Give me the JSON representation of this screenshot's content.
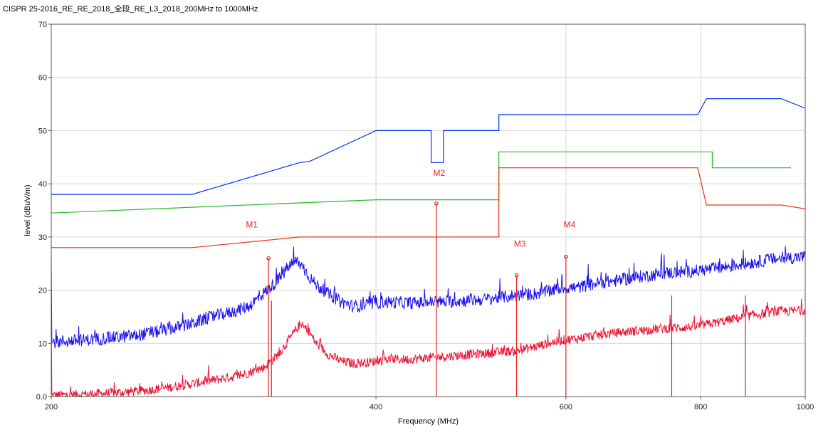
{
  "chart_data": {
    "type": "line",
    "title": "CISPR 25-2016_RE_RE_2018_全段_RE_L3_2018_200MHz to 1000MHz",
    "xlabel": "Frequency (MHz)",
    "ylabel": "level (dBuV/m)",
    "x_scale": "log",
    "xlim": [
      200,
      1000
    ],
    "ylim": [
      0,
      70
    ],
    "x_ticks": [
      200,
      400,
      600,
      800,
      1000
    ],
    "x_tick_labels": [
      "200",
      "400",
      "600",
      "800",
      "1000"
    ],
    "y_ticks": [
      0,
      10,
      20,
      30,
      40,
      50,
      60,
      70
    ],
    "y_tick_labels": [
      "0.0",
      "10",
      "20",
      "30",
      "40",
      "50",
      "60",
      "70"
    ],
    "grid": true,
    "colors": {
      "peak_limit": "#0033ff",
      "qp_limit": "#22bb22",
      "avg_limit": "#ee3311",
      "peak_trace": "#1a10ee",
      "avg_trace": "#ee1133",
      "marker": "#ee2222",
      "grid": "#d4d4d4"
    },
    "limit_lines": [
      {
        "key": "peak_limit",
        "points": [
          [
            200,
            38
          ],
          [
            270,
            38
          ],
          [
            340,
            44
          ],
          [
            347,
            44.2
          ],
          [
            400,
            50
          ],
          [
            450,
            50
          ],
          [
            450,
            44
          ],
          [
            462,
            44
          ],
          [
            462,
            50
          ],
          [
            520,
            50
          ],
          [
            520,
            53
          ],
          [
            795,
            53
          ],
          [
            810,
            56
          ],
          [
            950,
            56
          ],
          [
            1000,
            54.2
          ]
        ]
      },
      {
        "key": "qp_limit",
        "points": [
          [
            200,
            34.5
          ],
          [
            400,
            37
          ],
          [
            520,
            37
          ],
          [
            520,
            46
          ],
          [
            820,
            46
          ],
          [
            820,
            43
          ],
          [
            970,
            43
          ]
        ]
      },
      {
        "key": "avg_limit",
        "points": [
          [
            200,
            28
          ],
          [
            270,
            28
          ],
          [
            340,
            30
          ],
          [
            520,
            30
          ],
          [
            520,
            43
          ],
          [
            795,
            43
          ],
          [
            810,
            36
          ],
          [
            950,
            36
          ],
          [
            1000,
            35.3
          ]
        ]
      }
    ],
    "peak_trace": {
      "key": "peak_trace",
      "points": [
        [
          200,
          10.2
        ],
        [
          220,
          10.8
        ],
        [
          240,
          11.5
        ],
        [
          255,
          12.5
        ],
        [
          268,
          13.5
        ],
        [
          280,
          14.8
        ],
        [
          295,
          16
        ],
        [
          305,
          17
        ],
        [
          315,
          19.5
        ],
        [
          325,
          22
        ],
        [
          332,
          24.5
        ],
        [
          338,
          25.5
        ],
        [
          343,
          24
        ],
        [
          350,
          21.5
        ],
        [
          360,
          19.5
        ],
        [
          370,
          18
        ],
        [
          380,
          17
        ],
        [
          392,
          17.2
        ],
        [
          405,
          17.8
        ],
        [
          430,
          17.6
        ],
        [
          460,
          17.8
        ],
        [
          500,
          18.2
        ],
        [
          540,
          19
        ],
        [
          570,
          19.5
        ],
        [
          590,
          20.3
        ],
        [
          615,
          20.5
        ],
        [
          640,
          21.3
        ],
        [
          670,
          21.8
        ],
        [
          700,
          22.5
        ],
        [
          740,
          23.2
        ],
        [
          780,
          23.5
        ],
        [
          820,
          24
        ],
        [
          870,
          24.8
        ],
        [
          930,
          25.8
        ],
        [
          1000,
          26.3
        ]
      ]
    },
    "avg_trace": {
      "key": "avg_trace",
      "points": [
        [
          200,
          0.2
        ],
        [
          220,
          0.5
        ],
        [
          240,
          1
        ],
        [
          255,
          1.6
        ],
        [
          268,
          2.3
        ],
        [
          285,
          3.2
        ],
        [
          300,
          4
        ],
        [
          315,
          5.5
        ],
        [
          325,
          8
        ],
        [
          333,
          11
        ],
        [
          340,
          13.5
        ],
        [
          346,
          12.5
        ],
        [
          352,
          10
        ],
        [
          362,
          7.8
        ],
        [
          372,
          6.6
        ],
        [
          382,
          6.2
        ],
        [
          395,
          6.5
        ],
        [
          410,
          7
        ],
        [
          430,
          7
        ],
        [
          450,
          7.3
        ],
        [
          480,
          7.8
        ],
        [
          510,
          8.2
        ],
        [
          540,
          8.6
        ],
        [
          560,
          9.3
        ],
        [
          580,
          10.1
        ],
        [
          595,
          10.6
        ],
        [
          615,
          10.9
        ],
        [
          640,
          11.5
        ],
        [
          670,
          12
        ],
        [
          700,
          12.4
        ],
        [
          740,
          12.8
        ],
        [
          790,
          13.1
        ],
        [
          840,
          14.2
        ],
        [
          890,
          15.2
        ],
        [
          940,
          16
        ],
        [
          1000,
          16.2
        ]
      ]
    },
    "spikes": [
      {
        "freq": 318,
        "top": 26.0,
        "key": "marker"
      },
      {
        "freq": 455,
        "top": 36.3,
        "key": "marker"
      },
      {
        "freq": 540,
        "top": 22.8,
        "key": "marker"
      },
      {
        "freq": 600,
        "top": 26.3,
        "key": "marker"
      },
      {
        "freq": 320,
        "top": 18,
        "key": "avg_trace"
      },
      {
        "freq": 752,
        "top": 19,
        "key": "avg_trace"
      },
      {
        "freq": 880,
        "top": 19,
        "key": "avg_trace"
      }
    ],
    "markers": [
      {
        "label": "M1",
        "freq": 318,
        "level": 26.0,
        "label_freq": 303,
        "label_level": 31.8
      },
      {
        "label": "M2",
        "freq": 455,
        "level": 36.3,
        "label_freq": 452,
        "label_level": 41.5
      },
      {
        "label": "M3",
        "freq": 540,
        "level": 22.8,
        "label_freq": 537,
        "label_level": 28.2
      },
      {
        "label": "M4",
        "freq": 600,
        "level": 26.3,
        "label_freq": 597,
        "label_level": 31.8
      }
    ]
  }
}
